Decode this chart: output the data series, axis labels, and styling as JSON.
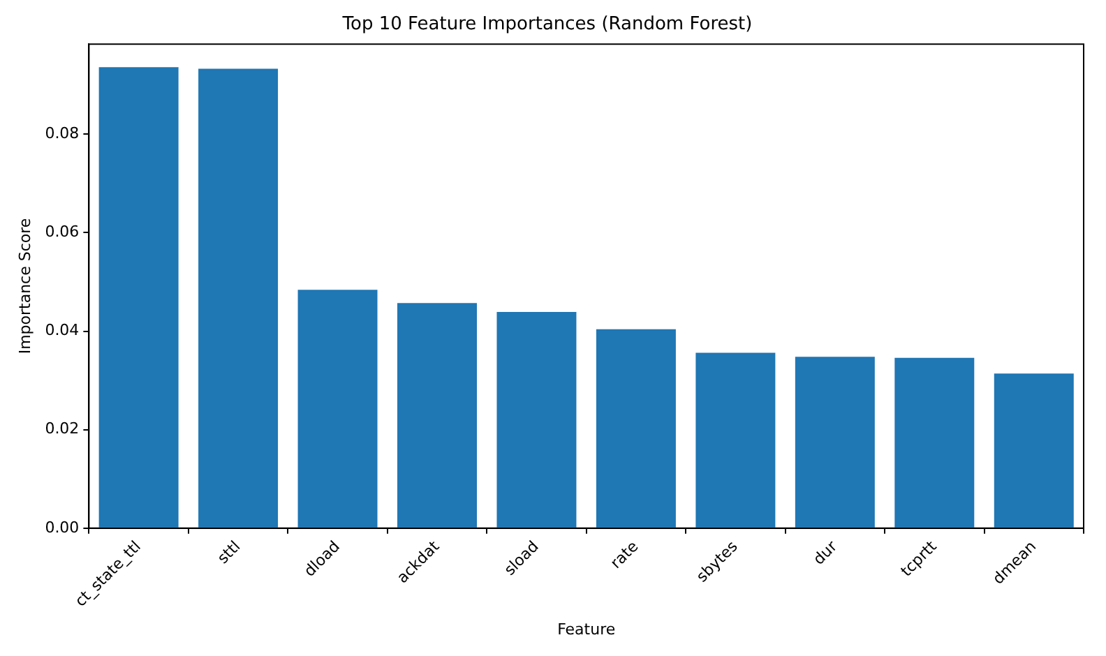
{
  "chart_data": {
    "type": "bar",
    "title": "Top 10 Feature Importances (Random Forest)",
    "xlabel": "Feature",
    "ylabel": "Importance Score",
    "categories": [
      "ct_state_ttl",
      "sttl",
      "dload",
      "ackdat",
      "sload",
      "rate",
      "sbytes",
      "dur",
      "tcprtt",
      "dmean"
    ],
    "values": [
      0.0936,
      0.0933,
      0.0484,
      0.0457,
      0.0439,
      0.0404,
      0.0356,
      0.0348,
      0.0346,
      0.0314
    ],
    "color": "#1f77b4",
    "ylim": [
      0,
      0.0983
    ],
    "yticks": [
      {
        "value": 0,
        "label": "0.00"
      },
      {
        "value": 0.02,
        "label": "0.02"
      },
      {
        "value": 0.04,
        "label": "0.04"
      },
      {
        "value": 0.06,
        "label": "0.06"
      },
      {
        "value": 0.08,
        "label": "0.08"
      }
    ],
    "grid": false
  }
}
